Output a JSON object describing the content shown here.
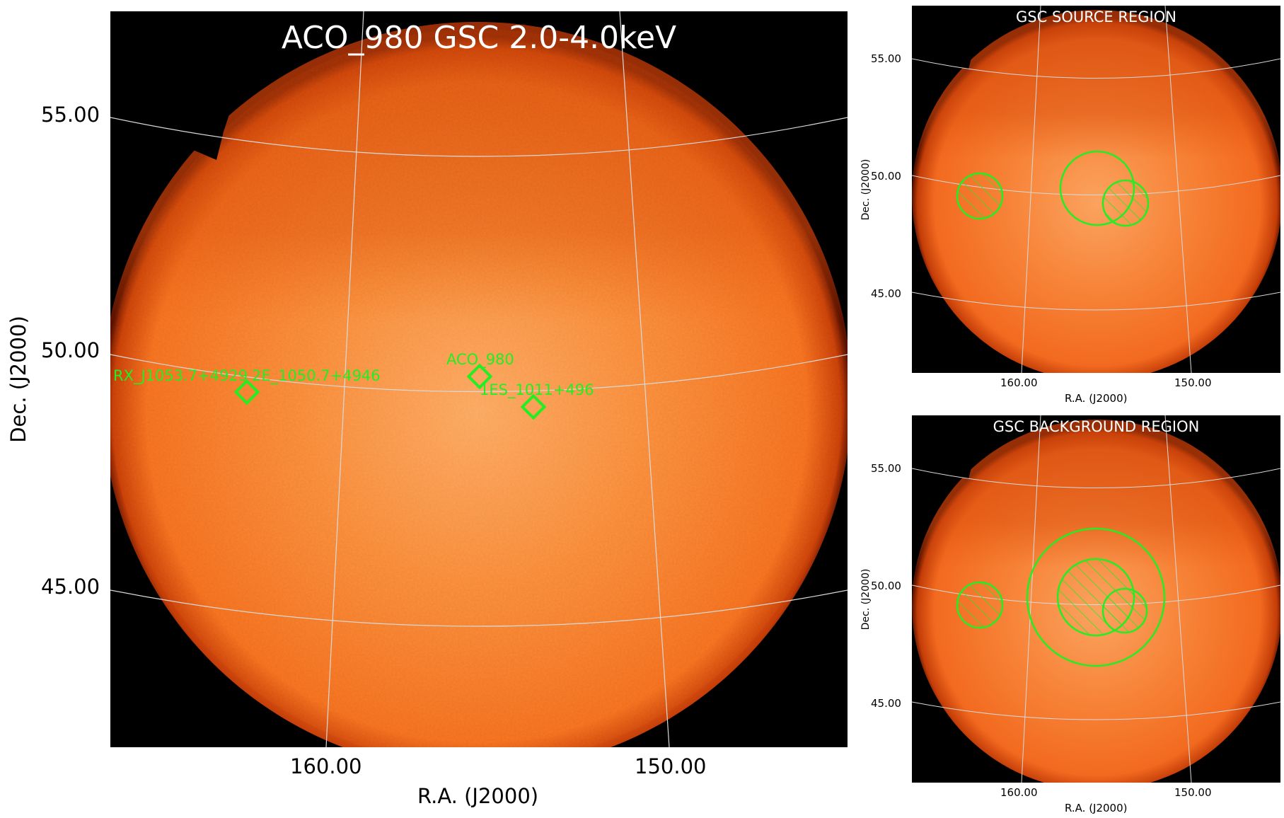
{
  "main": {
    "title": "ACO_980 GSC 2.0-4.0keV",
    "xlabel": "R.A. (J2000)",
    "ylabel": "Dec. (J2000)",
    "yticks": [
      "55.00",
      "50.00",
      "45.00"
    ],
    "xticks": [
      "160.00",
      "150.00"
    ],
    "sources": [
      {
        "label": "ACO_980"
      },
      {
        "label": "1ES_1011+496"
      },
      {
        "label": "RX_J1053.7+4929"
      },
      {
        "label": "2E_1050.7+4946"
      }
    ]
  },
  "source_region": {
    "title": "GSC SOURCE REGION",
    "xlabel": "R.A. (J2000)",
    "ylabel": "Dec. (J2000)",
    "yticks": [
      "55.00",
      "50.00",
      "45.00"
    ],
    "xticks": [
      "160.00",
      "150.00"
    ]
  },
  "background_region": {
    "title": "GSC BACKGROUND REGION",
    "xlabel": "R.A. (J2000)",
    "ylabel": "Dec. (J2000)",
    "yticks": [
      "55.00",
      "50.00",
      "45.00"
    ],
    "xticks": [
      "160.00",
      "150.00"
    ]
  },
  "colors": {
    "region_green": "#22ee22",
    "image_orange": "#f26318",
    "grid": "#d9d9d9"
  }
}
